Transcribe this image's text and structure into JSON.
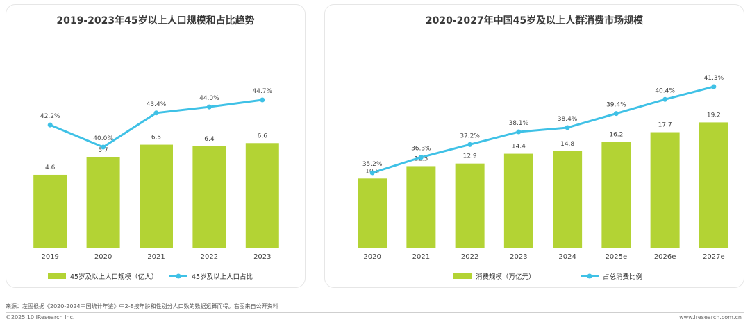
{
  "chart_data": [
    {
      "type": "bar+line",
      "title": "2019-2023年45岁以上人口规模和占比趋势",
      "categories": [
        "2019",
        "2020",
        "2021",
        "2022",
        "2023"
      ],
      "series": [
        {
          "name": "45岁及以上人口规模（亿人）",
          "type": "bar",
          "values": [
            4.6,
            5.7,
            6.5,
            6.4,
            6.6
          ],
          "labels": [
            "4.6",
            "5.7",
            "6.5",
            "6.4",
            "6.6"
          ]
        },
        {
          "name": "45岁及以上人口占比",
          "type": "line",
          "values": [
            42.2,
            40.0,
            43.4,
            44.0,
            44.7
          ],
          "labels": [
            "42.2%",
            "40.0%",
            "43.4%",
            "44.0%",
            "44.7%"
          ]
        }
      ],
      "legend": "bottom",
      "colors": {
        "bar": "#b3d334",
        "line": "#3fc1e6"
      }
    },
    {
      "type": "bar+line",
      "title": "2020-2027年中国45岁及以上人群消费市场规模",
      "categories": [
        "2020",
        "2021",
        "2022",
        "2023",
        "2024",
        "2025e",
        "2026e",
        "2027e"
      ],
      "series": [
        {
          "name": "消费规模（万亿元）",
          "type": "bar",
          "values": [
            10.6,
            12.5,
            12.9,
            14.4,
            14.8,
            16.2,
            17.7,
            19.2
          ],
          "labels": [
            "10.6",
            "12.5",
            "12.9",
            "14.4",
            "14.8",
            "16.2",
            "17.7",
            "19.2"
          ]
        },
        {
          "name": "占总消费比例",
          "type": "line",
          "values": [
            35.2,
            36.3,
            37.2,
            38.1,
            38.4,
            39.4,
            40.4,
            41.3
          ],
          "labels": [
            "35.2%",
            "36.3%",
            "37.2%",
            "38.1%",
            "38.4%",
            "39.4%",
            "40.4%",
            "41.3%"
          ]
        }
      ],
      "legend": "bottom",
      "colors": {
        "bar": "#b3d334",
        "line": "#3fc1e6"
      }
    }
  ],
  "footer": {
    "source": "来源：左图根据《2020-2024中国统计年鉴》中2-8按年龄和性别分人口数的数据运算而得。右图来自公开资料",
    "copyright": "©2025.10 iResearch Inc.",
    "website": "www.iresearch.com.cn"
  }
}
